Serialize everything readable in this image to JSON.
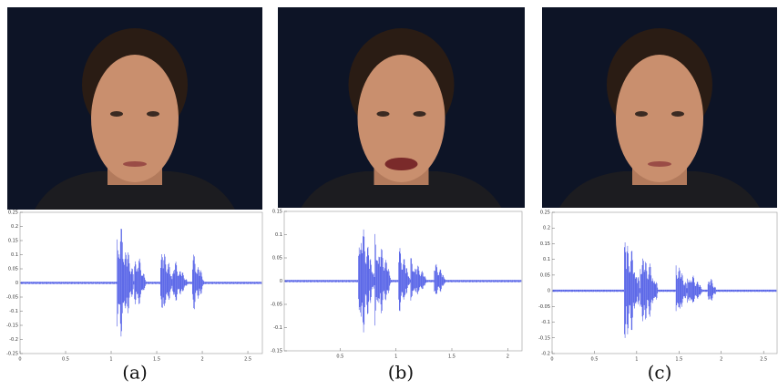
{
  "panels": [
    {
      "caption": "(a)",
      "plot": {
        "xticks": [
          0,
          0.5,
          1,
          1.5,
          2,
          2.5
        ],
        "yticks": [
          -0.25,
          -0.2,
          -0.15,
          -0.1,
          -0.05,
          0,
          0.05,
          0.1,
          0.15,
          0.2,
          0.25
        ]
      }
    },
    {
      "caption": "(b)",
      "plot": {
        "xticks": [
          0.5,
          1,
          1.5,
          2
        ],
        "yticks": [
          -0.15,
          -0.1,
          -0.05,
          0,
          0.05,
          0.1,
          0.15
        ]
      }
    },
    {
      "caption": "(c)",
      "plot": {
        "xticks": [
          0,
          0.5,
          1,
          1.5,
          2,
          2.5
        ],
        "yticks": [
          -0.2,
          -0.15,
          -0.1,
          -0.05,
          0,
          0.05,
          0.1,
          0.15,
          0.2,
          0.25
        ]
      }
    }
  ]
}
